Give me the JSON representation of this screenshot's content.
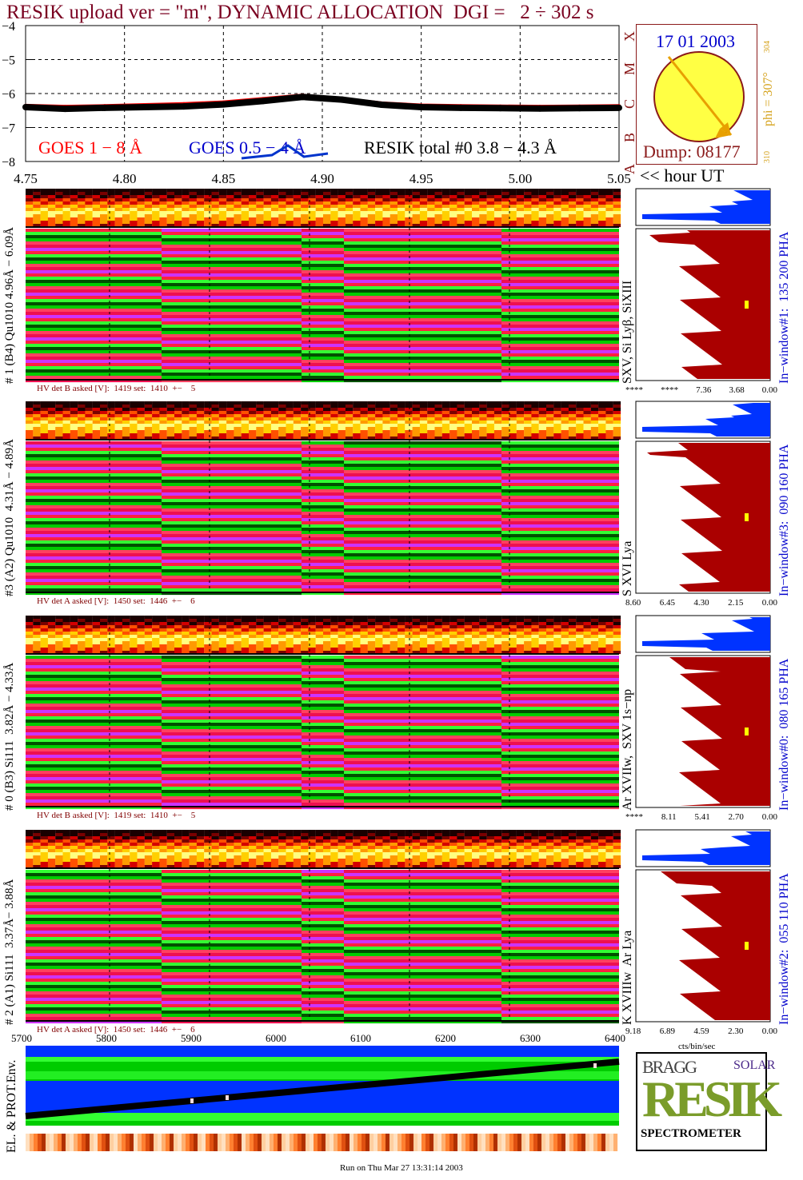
{
  "title": "RESIK upload ver = \"m\", DYNAMIC ALLOCATION  DGI =   2 ÷ 302 s",
  "lightcurve": {
    "x_ticks": [
      "4.75",
      "4.80",
      "4.85",
      "4.90",
      "4.95",
      "5.00",
      "5.05"
    ],
    "x_unit": "<< hour UT",
    "y_ticks": [
      "−4",
      "−5",
      "−6",
      "−7",
      "−8"
    ],
    "legend_goes18": "GOES 1 − 8 Å",
    "legend_goes054": "GOES 0.5 − 4 Å",
    "legend_resik": "RESIK total #0  3.8 − 4.3 Å",
    "goes_classes": [
      "X",
      "M",
      "C",
      "B",
      "A"
    ],
    "colors": {
      "goes18": "#ff0000",
      "goes054": "#0000ff",
      "resik": "#000000"
    }
  },
  "chart_data": {
    "type": "line",
    "x": [
      4.75,
      4.77,
      4.79,
      4.81,
      4.83,
      4.85,
      4.87,
      4.89,
      4.91,
      4.93,
      4.95,
      4.97,
      4.99,
      5.01,
      5.03,
      5.05
    ],
    "series": [
      {
        "name": "GOES 1 − 8 Å",
        "values": [
          -6.35,
          -6.38,
          -6.36,
          -6.33,
          -6.3,
          -6.25,
          -6.15,
          -6.05,
          -6.15,
          -6.28,
          -6.34,
          -6.36,
          -6.37,
          -6.38,
          -6.37,
          -6.36
        ]
      },
      {
        "name": "RESIK total #0  3.8 − 4.3 Å",
        "values": [
          -6.4,
          -6.45,
          -6.42,
          -6.4,
          -6.38,
          -6.32,
          -6.22,
          -6.1,
          -6.18,
          -6.33,
          -6.4,
          -6.42,
          -6.43,
          -6.44,
          -6.43,
          -6.42
        ]
      }
    ],
    "ylim": [
      -8,
      -4
    ],
    "xlim": [
      4.75,
      5.05
    ]
  },
  "sun": {
    "date": "17 01 2003",
    "phi": "phi = 307°",
    "phi_small": "304",
    "bottom_small": "310",
    "dump": "Dump: 08177"
  },
  "panels": [
    {
      "ylabel": "# 1 (B4) Qu1010 4.96Å − 6.09Å",
      "lines": "SXV, Si Lyβ, SiXIII",
      "window": "In−window#1:  135 200 PHA",
      "hv": "HV det B asked [V]:  1419 set:  1410  +−    5",
      "axis": [
        "****",
        "****",
        "7.36",
        "3.68",
        "0.00"
      ]
    },
    {
      "ylabel": "#3 (A2) Qu1010  4.31Å − 4.89Å",
      "lines": "S XVI Lya",
      "window": "In−window#3:  090 160 PHA",
      "hv": "HV det A asked [V]:  1450 set:  1446  +−    6",
      "axis": [
        "8.60",
        "6.45",
        "4.30",
        "2.15",
        "0.00"
      ]
    },
    {
      "ylabel": "# 0 (B3) Si111  3.82Å − 4.33Å",
      "lines": "Ar XVIIw,  SXV 1s−np",
      "window": "In−window#0:  080 165 PHA",
      "hv": "HV det B asked [V]:  1419 set:  1410  +−    5",
      "axis": [
        "****",
        "8.11",
        "5.41",
        "2.70",
        "0.00"
      ]
    },
    {
      "ylabel": "# 2 (A1) Si111  3.37Å− 3.88Å",
      "lines": "K XVIIIw  Ar Lya",
      "window": "In−window#2:  055 110 PHA",
      "hv": "HV det A asked [V]:  1450 set:  1446  +−    6",
      "axis": [
        "9.18",
        "6.89",
        "4.59",
        "2.30",
        "0.00"
      ]
    }
  ],
  "cts_label": "cts/bin/sec",
  "bottom": {
    "x_ticks": [
      "5700",
      "5800",
      "5900",
      "6000",
      "6100",
      "6200",
      "6300",
      "6400"
    ],
    "ylabel": "EL. & PROT.Env."
  },
  "logo": {
    "bragg": "BRAGG",
    "resik": "RESIK",
    "solar": "SOLAR",
    "spectrometer": "SPECTROMETER"
  },
  "footer": "Run on Thu Mar 27 13:31:14 2003"
}
